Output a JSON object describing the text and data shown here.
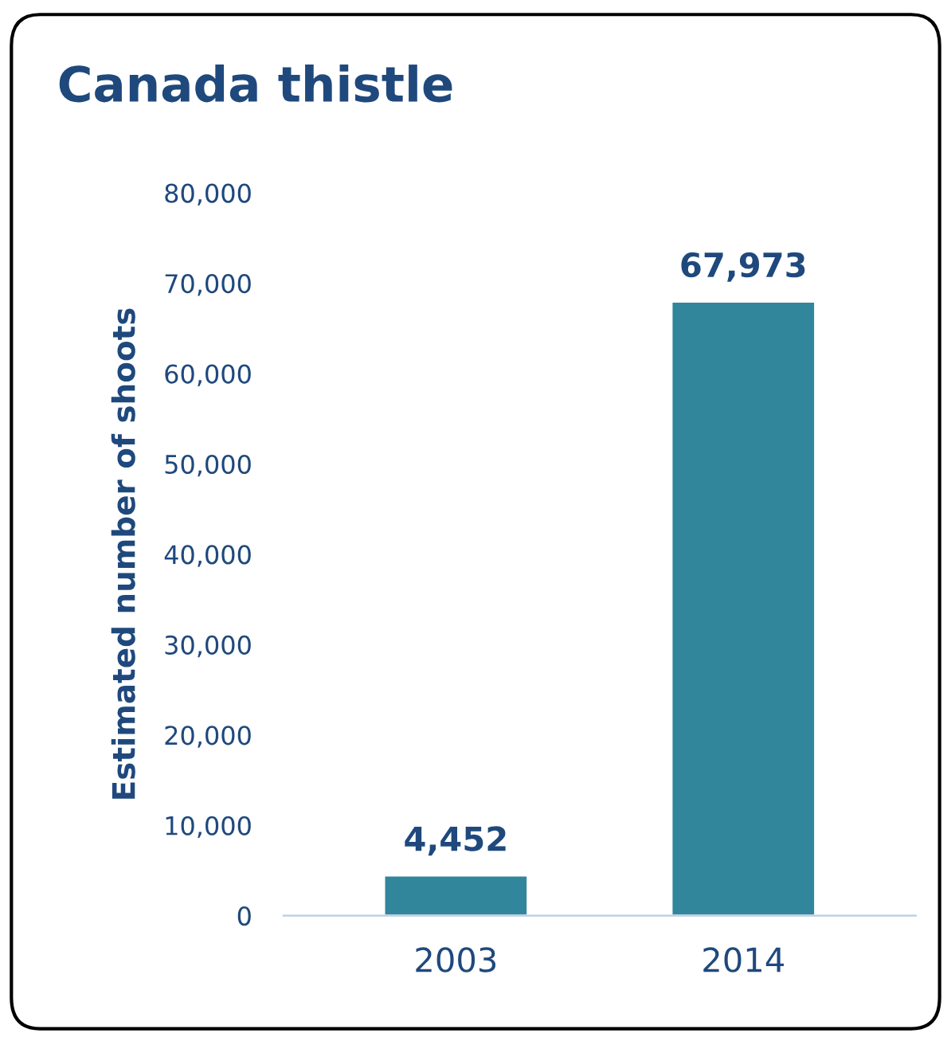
{
  "chart_data": {
    "type": "bar",
    "title": "Canada thistle",
    "ylabel": "Estimated number of shoots",
    "categories": [
      "2003",
      "2014"
    ],
    "values": [
      4452,
      67973
    ],
    "color": "#31869b",
    "value_labels": [
      "4,452",
      "67,973"
    ],
    "ylim": [
      0,
      80000
    ],
    "yticks": [
      {
        "value": 0,
        "label": "0"
      },
      {
        "value": 10000,
        "label": "10,000"
      },
      {
        "value": 20000,
        "label": "20,000"
      },
      {
        "value": 30000,
        "label": "30,000"
      },
      {
        "value": 40000,
        "label": "40,000"
      },
      {
        "value": 50000,
        "label": "50,000"
      },
      {
        "value": 60000,
        "label": "60,000"
      },
      {
        "value": 70000,
        "label": "70,000"
      },
      {
        "value": 80000,
        "label": "80,000"
      }
    ],
    "grid": false,
    "legend": false
  }
}
